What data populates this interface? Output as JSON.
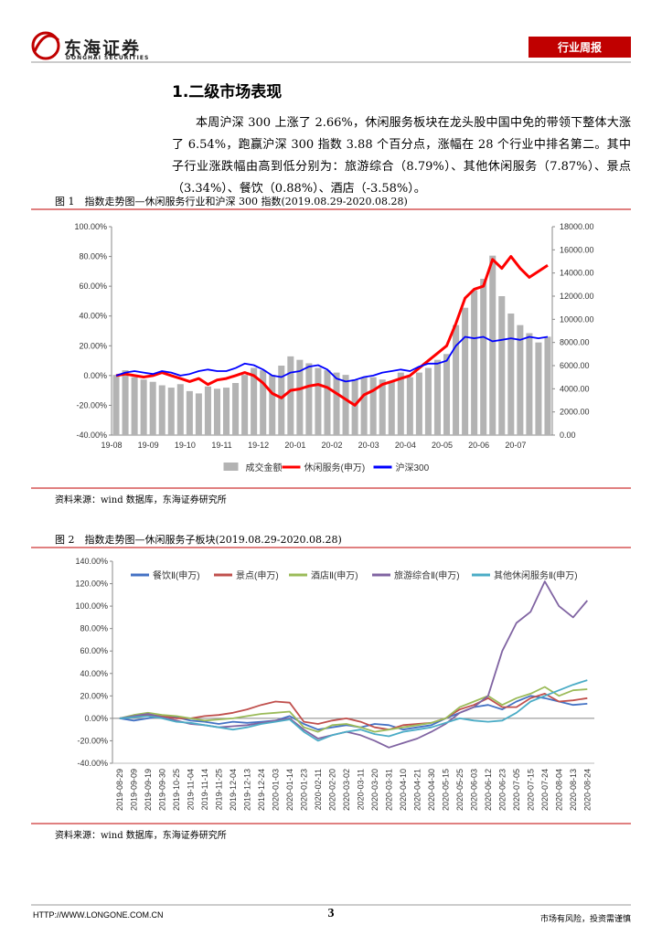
{
  "header": {
    "brand": "东海证券",
    "brand_en": "DONGHAI SECURITIES",
    "tag": "行业周报"
  },
  "section": {
    "title": "1.二级市场表现",
    "paragraph": "本周沪深 300 上涨了 2.66%，休闲服务板块在龙头股中国中免的带领下整体大涨了 6.54%，跑赢沪深 300 指数 3.88 个百分点，涨幅在 28 个行业中排名第二。其中子行业涨跌幅由高到低分别为：旅游综合（8.79%）、其他休闲服务（7.87%）、景点（3.34%）、餐饮（0.88%）、酒店（-3.58%）。"
  },
  "figures": [
    {
      "caption": "图 1　指数走势图—休闲服务行业和沪深 300 指数(2019.08.29-2020.08.28)",
      "source": "资料来源：wind 数据库，东海证券研究所"
    },
    {
      "caption": "图 2　指数走势图—休闲服务子板块(2019.08.29-2020.08.28)",
      "source": "资料来源：wind 数据库，东海证券研究所"
    }
  ],
  "chart_data": [
    {
      "type": "combo",
      "legend": "bottom",
      "grid": false,
      "categories": [
        "19-08",
        null,
        null,
        null,
        "19-09",
        null,
        null,
        null,
        "19-10",
        null,
        null,
        null,
        "19-11",
        null,
        null,
        null,
        "19-12",
        null,
        null,
        null,
        "20-01",
        null,
        null,
        null,
        "20-02",
        null,
        null,
        null,
        "20-03",
        null,
        null,
        null,
        "20-04",
        null,
        null,
        null,
        "20-05",
        null,
        null,
        null,
        "20-06",
        null,
        null,
        null,
        "20-07",
        null,
        null,
        null
      ],
      "ylim": [
        -40,
        100
      ],
      "yticks": [
        {
          "value": -40,
          "label": "-40.00%"
        },
        {
          "value": -20,
          "label": "-20.00%"
        },
        {
          "value": 0,
          "label": "0.00%"
        },
        {
          "value": 20,
          "label": "20.00%"
        },
        {
          "value": 40,
          "label": "40.00%"
        },
        {
          "value": 60,
          "label": "60.00%"
        },
        {
          "value": 80,
          "label": "80.00%"
        },
        {
          "value": 100,
          "label": "100.00%"
        }
      ],
      "y2lim": [
        0,
        18000
      ],
      "y2ticks": [
        {
          "value": 0,
          "label": "0.00"
        },
        {
          "value": 2000,
          "label": "2000.00"
        },
        {
          "value": 4000,
          "label": "4000.00"
        },
        {
          "value": 6000,
          "label": "6000.00"
        },
        {
          "value": 8000,
          "label": "8000.00"
        },
        {
          "value": 10000,
          "label": "10000.00"
        },
        {
          "value": 12000,
          "label": "12000.00"
        },
        {
          "value": 14000,
          "label": "14000.00"
        },
        {
          "value": 16000,
          "label": "16000.00"
        },
        {
          "value": 18000,
          "label": "18000.00"
        }
      ],
      "series": [
        {
          "name": "成交金额",
          "mark": "bar",
          "axis": "y2",
          "color": "#b3b3b3",
          "values": [
            5200,
            5600,
            5000,
            4800,
            4600,
            4300,
            4100,
            4400,
            3800,
            3600,
            4200,
            4000,
            4100,
            4500,
            5200,
            5800,
            5600,
            5200,
            6000,
            6800,
            6500,
            6200,
            5800,
            5600,
            5400,
            5200,
            4800,
            5000,
            5000,
            4800,
            4600,
            5400,
            5000,
            5400,
            5800,
            6500,
            7000,
            9500,
            11000,
            12500,
            13500,
            15500,
            12000,
            10500,
            9500,
            8800,
            8000,
            8500
          ]
        },
        {
          "name": "休闲服务(申万)",
          "mark": "line",
          "color": "#ff0000",
          "values": [
            0,
            1,
            0,
            -1,
            0,
            2,
            0,
            -2,
            -4,
            -2,
            -6,
            -3,
            -2,
            0,
            2,
            0,
            -5,
            -12,
            -15,
            -10,
            -9,
            -7,
            -6,
            -8,
            -12,
            -16,
            -20,
            -13,
            -10,
            -6,
            -4,
            -2,
            0,
            5,
            10,
            15,
            20,
            35,
            52,
            58,
            60,
            78,
            72,
            80,
            72,
            66,
            70,
            74
          ]
        },
        {
          "name": "沪深300",
          "mark": "line",
          "color": "#0000ff",
          "values": [
            0,
            2,
            3,
            2,
            1,
            3,
            2,
            0,
            1,
            3,
            4,
            3,
            3,
            5,
            8,
            7,
            4,
            0,
            -1,
            2,
            3,
            6,
            7,
            4,
            -2,
            -4,
            -3,
            -1,
            0,
            2,
            3,
            4,
            3,
            6,
            8,
            8,
            10,
            20,
            26,
            25,
            26,
            23,
            24,
            25,
            24,
            26,
            25,
            26
          ]
        }
      ]
    },
    {
      "type": "line",
      "legend": "top",
      "grid": false,
      "categories": [
        "2019-08-29",
        "2019-09-09",
        "2019-09-19",
        "2019-09-30",
        "2019-10-25",
        "2019-11-04",
        "2019-11-14",
        "2019-11-25",
        "2019-12-04",
        "2019-12-13",
        "2019-12-24",
        "2020-01-03",
        "2020-01-14",
        "2020-01-23",
        "2020-02-11",
        "2020-02-20",
        "2020-03-02",
        "2020-03-11",
        "2020-03-20",
        "2020-03-31",
        "2020-04-10",
        "2020-04-21",
        "2020-04-30",
        "2020-05-15",
        "2020-05-25",
        "2020-06-03",
        "2020-06-12",
        "2020-06-23",
        "2020-07-05",
        "2020-07-15",
        "2020-07-24",
        "2020-08-04",
        "2020-08-13",
        "2020-08-24"
      ],
      "ylim": [
        -40,
        140
      ],
      "yticks": [
        {
          "value": -40,
          "label": "-40.00%"
        },
        {
          "value": -20,
          "label": "-20.00%"
        },
        {
          "value": 0,
          "label": "0.00%"
        },
        {
          "value": 20,
          "label": "20.00%"
        },
        {
          "value": 40,
          "label": "40.00%"
        },
        {
          "value": 60,
          "label": "60.00%"
        },
        {
          "value": 80,
          "label": "80.00%"
        },
        {
          "value": 100,
          "label": "100.00%"
        },
        {
          "value": 120,
          "label": "120.00%"
        },
        {
          "value": 140,
          "label": "140.00%"
        }
      ],
      "series": [
        {
          "name": "餐饮Ⅱ(申万)",
          "mark": "line",
          "color": "#4472c4",
          "values": [
            0,
            -2,
            0,
            2,
            1,
            -2,
            -3,
            -5,
            -3,
            -4,
            -3,
            -2,
            2,
            -5,
            -10,
            -8,
            -6,
            -8,
            -5,
            -6,
            -10,
            -8,
            -6,
            0,
            5,
            10,
            12,
            8,
            15,
            20,
            18,
            15,
            12,
            13
          ]
        },
        {
          "name": "景点(申万)",
          "mark": "line",
          "color": "#c0504d",
          "values": [
            0,
            2,
            3,
            2,
            0,
            0,
            2,
            3,
            5,
            8,
            12,
            15,
            14,
            -3,
            -5,
            -2,
            0,
            -3,
            -8,
            -10,
            -6,
            -5,
            -4,
            0,
            8,
            12,
            18,
            10,
            10,
            18,
            22,
            15,
            16,
            18
          ]
        },
        {
          "name": "酒店Ⅱ(申万)",
          "mark": "line",
          "color": "#9bbb59",
          "values": [
            0,
            3,
            5,
            3,
            2,
            0,
            -2,
            -1,
            0,
            2,
            4,
            5,
            6,
            -8,
            -12,
            -6,
            -5,
            -8,
            -12,
            -10,
            -8,
            -6,
            -4,
            0,
            10,
            15,
            20,
            12,
            18,
            22,
            28,
            20,
            25,
            26
          ]
        },
        {
          "name": "旅游综合Ⅱ(申万)",
          "mark": "line",
          "color": "#8064a2",
          "values": [
            0,
            2,
            4,
            1,
            -2,
            -5,
            -6,
            -8,
            -7,
            -6,
            -4,
            -2,
            0,
            -10,
            -18,
            -15,
            -12,
            -15,
            -20,
            -26,
            -22,
            -18,
            -12,
            -5,
            5,
            10,
            20,
            60,
            85,
            95,
            122,
            100,
            90,
            105
          ]
        },
        {
          "name": "其他休闲服务Ⅱ(申万)",
          "mark": "line",
          "color": "#4bacc6",
          "values": [
            0,
            1,
            2,
            0,
            -3,
            -4,
            -6,
            -8,
            -10,
            -8,
            -5,
            -3,
            -1,
            -12,
            -20,
            -15,
            -12,
            -10,
            -14,
            -16,
            -12,
            -10,
            -8,
            -4,
            0,
            -2,
            -3,
            -2,
            5,
            15,
            20,
            25,
            30,
            34
          ]
        }
      ]
    }
  ],
  "footer": {
    "url": "HTTP://WWW.LONGONE.COM.CN",
    "page": "3",
    "disclaimer": "市场有风险，投资需谨慎"
  }
}
